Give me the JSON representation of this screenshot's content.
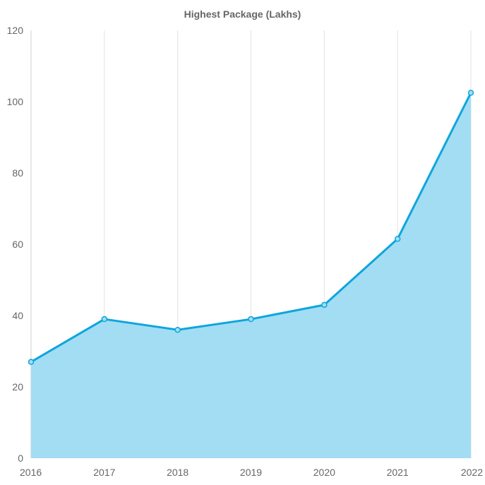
{
  "chart_data": {
    "type": "area",
    "title": "Highest Package (Lakhs)",
    "xlabel": "",
    "ylabel": "",
    "categories": [
      "2016",
      "2017",
      "2018",
      "2019",
      "2020",
      "2021",
      "2022"
    ],
    "series": [
      {
        "values": [
          27,
          39,
          36,
          39,
          43,
          61.5,
          102.5
        ]
      }
    ],
    "ylim": [
      0,
      120
    ],
    "yticks": [
      0,
      20,
      40,
      60,
      80,
      100,
      120
    ],
    "grid": {
      "vertical": true,
      "horizontal": false
    },
    "legend": "none",
    "colors": {
      "line": "#0ea5dd",
      "fill": "#a2ddf3",
      "grid": "#e3e3e3",
      "text": "#666666"
    }
  }
}
